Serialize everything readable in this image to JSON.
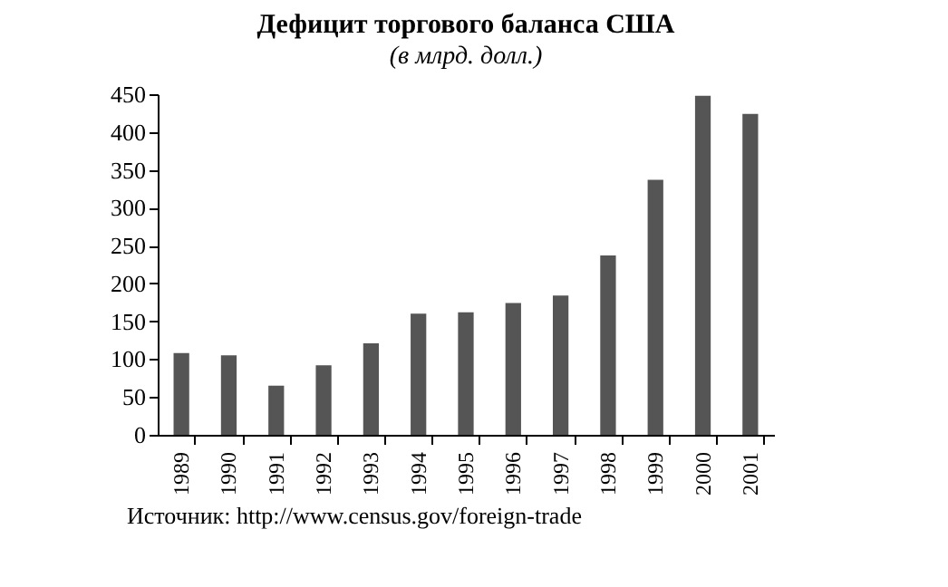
{
  "chart_data": {
    "type": "bar",
    "title": "Дефицит торгового баланса США",
    "subtitle": "(в млрд. долл.)",
    "categories": [
      "1989",
      "1990",
      "1991",
      "1992",
      "1993",
      "1994",
      "1995",
      "1996",
      "1997",
      "1998",
      "1999",
      "2000",
      "2001"
    ],
    "values": [
      108,
      105,
      65,
      92,
      121,
      160,
      162,
      174,
      184,
      237,
      337,
      448,
      424
    ],
    "color": "#555555",
    "ylim": [
      0,
      450
    ],
    "yticks": [
      0,
      50,
      100,
      150,
      200,
      250,
      300,
      350,
      400,
      450
    ],
    "grid": false,
    "annotations": [
      "Источник: http://www.census.gov/foreign-trade"
    ]
  }
}
